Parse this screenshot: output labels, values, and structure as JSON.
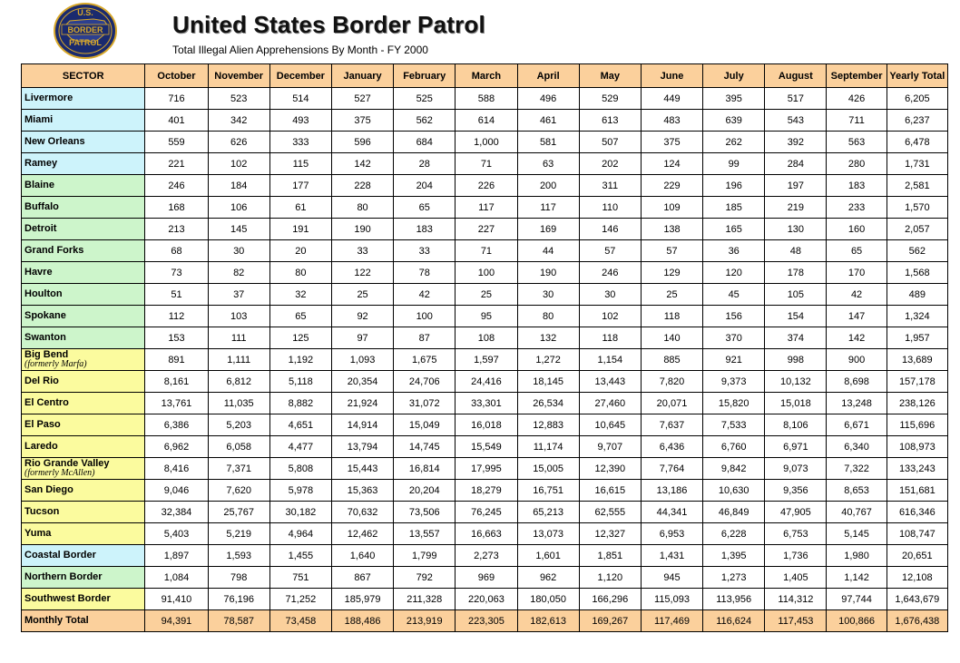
{
  "header": {
    "logo_text_top": "U.S.",
    "logo_text_middle": "BORDER",
    "logo_text_bottom": "PATROL",
    "title": "United States Border Patrol",
    "subtitle": "Total Illegal Alien Apprehensions By Month - FY 2000"
  },
  "colors": {
    "header_bg": "#fbd09c",
    "coastal_bg": "#cdf3fb",
    "northern_bg": "#cdf5cb",
    "southwest_bg": "#fbfb9e",
    "total_bg": "#fbd09c"
  },
  "table": {
    "columns": [
      "SECTOR",
      "October",
      "November",
      "December",
      "January",
      "February",
      "March",
      "April",
      "May",
      "June",
      "July",
      "August",
      "September",
      "Yearly Total"
    ],
    "rows": [
      {
        "sector": "Livermore",
        "group": "blue",
        "values": [
          "716",
          "523",
          "514",
          "527",
          "525",
          "588",
          "496",
          "529",
          "449",
          "395",
          "517",
          "426",
          "6,205"
        ]
      },
      {
        "sector": "Miami",
        "group": "blue",
        "values": [
          "401",
          "342",
          "493",
          "375",
          "562",
          "614",
          "461",
          "613",
          "483",
          "639",
          "543",
          "711",
          "6,237"
        ]
      },
      {
        "sector": "New Orleans",
        "group": "blue",
        "values": [
          "559",
          "626",
          "333",
          "596",
          "684",
          "1,000",
          "581",
          "507",
          "375",
          "262",
          "392",
          "563",
          "6,478"
        ]
      },
      {
        "sector": "Ramey",
        "group": "blue",
        "values": [
          "221",
          "102",
          "115",
          "142",
          "28",
          "71",
          "63",
          "202",
          "124",
          "99",
          "284",
          "280",
          "1,731"
        ]
      },
      {
        "sector": "Blaine",
        "group": "green",
        "values": [
          "246",
          "184",
          "177",
          "228",
          "204",
          "226",
          "200",
          "311",
          "229",
          "196",
          "197",
          "183",
          "2,581"
        ]
      },
      {
        "sector": "Buffalo",
        "group": "green",
        "values": [
          "168",
          "106",
          "61",
          "80",
          "65",
          "117",
          "117",
          "110",
          "109",
          "185",
          "219",
          "233",
          "1,570"
        ]
      },
      {
        "sector": "Detroit",
        "group": "green",
        "values": [
          "213",
          "145",
          "191",
          "190",
          "183",
          "227",
          "169",
          "146",
          "138",
          "165",
          "130",
          "160",
          "2,057"
        ]
      },
      {
        "sector": "Grand Forks",
        "group": "green",
        "values": [
          "68",
          "30",
          "20",
          "33",
          "33",
          "71",
          "44",
          "57",
          "57",
          "36",
          "48",
          "65",
          "562"
        ]
      },
      {
        "sector": "Havre",
        "group": "green",
        "values": [
          "73",
          "82",
          "80",
          "122",
          "78",
          "100",
          "190",
          "246",
          "129",
          "120",
          "178",
          "170",
          "1,568"
        ]
      },
      {
        "sector": "Houlton",
        "group": "green",
        "values": [
          "51",
          "37",
          "32",
          "25",
          "42",
          "25",
          "30",
          "30",
          "25",
          "45",
          "105",
          "42",
          "489"
        ]
      },
      {
        "sector": "Spokane",
        "group": "green",
        "values": [
          "112",
          "103",
          "65",
          "92",
          "100",
          "95",
          "80",
          "102",
          "118",
          "156",
          "154",
          "147",
          "1,324"
        ]
      },
      {
        "sector": "Swanton",
        "group": "green",
        "values": [
          "153",
          "111",
          "125",
          "97",
          "87",
          "108",
          "132",
          "118",
          "140",
          "370",
          "374",
          "142",
          "1,957"
        ]
      },
      {
        "sector": "Big Bend",
        "sub": "(formerly Marfa)",
        "group": "yellow",
        "values": [
          "891",
          "1,111",
          "1,192",
          "1,093",
          "1,675",
          "1,597",
          "1,272",
          "1,154",
          "885",
          "921",
          "998",
          "900",
          "13,689"
        ]
      },
      {
        "sector": "Del Rio",
        "group": "yellow",
        "values": [
          "8,161",
          "6,812",
          "5,118",
          "20,354",
          "24,706",
          "24,416",
          "18,145",
          "13,443",
          "7,820",
          "9,373",
          "10,132",
          "8,698",
          "157,178"
        ]
      },
      {
        "sector": "El Centro",
        "group": "yellow",
        "values": [
          "13,761",
          "11,035",
          "8,882",
          "21,924",
          "31,072",
          "33,301",
          "26,534",
          "27,460",
          "20,071",
          "15,820",
          "15,018",
          "13,248",
          "238,126"
        ]
      },
      {
        "sector": "El Paso",
        "group": "yellow",
        "values": [
          "6,386",
          "5,203",
          "4,651",
          "14,914",
          "15,049",
          "16,018",
          "12,883",
          "10,645",
          "7,637",
          "7,533",
          "8,106",
          "6,671",
          "115,696"
        ]
      },
      {
        "sector": "Laredo",
        "group": "yellow",
        "values": [
          "6,962",
          "6,058",
          "4,477",
          "13,794",
          "14,745",
          "15,549",
          "11,174",
          "9,707",
          "6,436",
          "6,760",
          "6,971",
          "6,340",
          "108,973"
        ]
      },
      {
        "sector": "Rio Grande Valley",
        "sub": "(formerly McAllen)",
        "group": "yellow",
        "values": [
          "8,416",
          "7,371",
          "5,808",
          "15,443",
          "16,814",
          "17,995",
          "15,005",
          "12,390",
          "7,764",
          "9,842",
          "9,073",
          "7,322",
          "133,243"
        ]
      },
      {
        "sector": "San Diego",
        "group": "yellow",
        "values": [
          "9,046",
          "7,620",
          "5,978",
          "15,363",
          "20,204",
          "18,279",
          "16,751",
          "16,615",
          "13,186",
          "10,630",
          "9,356",
          "8,653",
          "151,681"
        ]
      },
      {
        "sector": "Tucson",
        "group": "yellow",
        "values": [
          "32,384",
          "25,767",
          "30,182",
          "70,632",
          "73,506",
          "76,245",
          "65,213",
          "62,555",
          "44,341",
          "46,849",
          "47,905",
          "40,767",
          "616,346"
        ]
      },
      {
        "sector": "Yuma",
        "group": "yellow",
        "values": [
          "5,403",
          "5,219",
          "4,964",
          "12,462",
          "13,557",
          "16,663",
          "13,073",
          "12,327",
          "6,953",
          "6,228",
          "6,753",
          "5,145",
          "108,747"
        ]
      },
      {
        "sector": "Coastal Border",
        "group": "blue",
        "values": [
          "1,897",
          "1,593",
          "1,455",
          "1,640",
          "1,799",
          "2,273",
          "1,601",
          "1,851",
          "1,431",
          "1,395",
          "1,736",
          "1,980",
          "20,651"
        ]
      },
      {
        "sector": "Northern Border",
        "group": "green",
        "values": [
          "1,084",
          "798",
          "751",
          "867",
          "792",
          "969",
          "962",
          "1,120",
          "945",
          "1,273",
          "1,405",
          "1,142",
          "12,108"
        ]
      },
      {
        "sector": "Southwest Border",
        "group": "yellow",
        "values": [
          "91,410",
          "76,196",
          "71,252",
          "185,979",
          "211,328",
          "220,063",
          "180,050",
          "166,296",
          "115,093",
          "113,956",
          "114,312",
          "97,744",
          "1,643,679"
        ]
      },
      {
        "sector": "Monthly Total",
        "group": "total",
        "values": [
          "94,391",
          "78,587",
          "73,458",
          "188,486",
          "213,919",
          "223,305",
          "182,613",
          "169,267",
          "117,469",
          "116,624",
          "117,453",
          "100,866",
          "1,676,438"
        ]
      }
    ]
  }
}
